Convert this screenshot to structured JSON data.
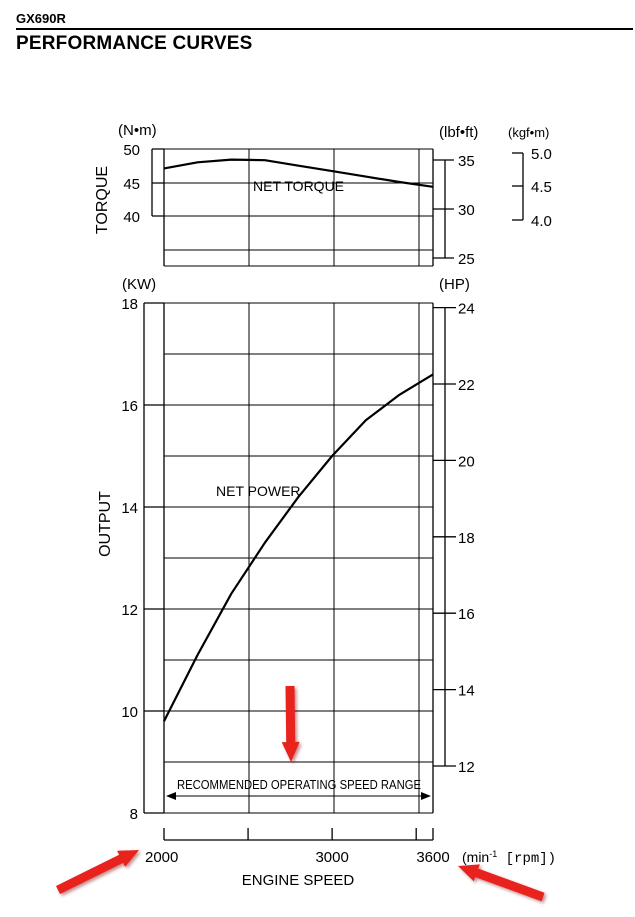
{
  "header": {
    "model": "GX690R",
    "title": "PERFORMANCE CURVES"
  },
  "chart_data": {
    "type": "line",
    "xlabel": "ENGINE SPEED",
    "x_unit": "(min",
    "x_unit_sup": "-1",
    "x_unit_rest": " [rpm])",
    "xlim": [
      2000,
      3600
    ],
    "x_ticks": [
      2000,
      3000,
      3600
    ],
    "x_minor": [
      2500,
      3500
    ],
    "torque_panel": {
      "ylabel": "TORQUE",
      "unit_left": "(N•m)",
      "unit_right": "(lbf•ft)",
      "unit_far": "(kgf•m)",
      "ticks_left": [
        "50",
        "45",
        "40"
      ],
      "ticks_right": [
        "35",
        "30",
        "25"
      ],
      "ticks_far": [
        "5.0",
        "4.5",
        "4.0"
      ],
      "series": [
        {
          "name": "NET TORQUE",
          "unit": "N•m",
          "x": [
            2000,
            2200,
            2400,
            2600,
            2800,
            3000,
            3200,
            3400,
            3600
          ],
          "y": [
            47.0,
            47.9,
            48.3,
            48.2,
            47.4,
            46.6,
            45.8,
            45.0,
            44.3
          ]
        }
      ]
    },
    "output_panel": {
      "ylabel": "OUTPUT",
      "unit_left": "(KW)",
      "unit_right": "(HP)",
      "ylim": [
        8,
        18
      ],
      "ticks_left": [
        "18",
        "16",
        "14",
        "12",
        "10",
        "8"
      ],
      "ticks_right": [
        "24",
        "22",
        "20",
        "18",
        "16",
        "14",
        "12"
      ],
      "series": [
        {
          "name": "NET POWER",
          "unit": "kW",
          "x": [
            2000,
            2200,
            2400,
            2600,
            2800,
            3000,
            3200,
            3400,
            3600
          ],
          "y": [
            9.8,
            11.1,
            12.3,
            13.3,
            14.2,
            15.0,
            15.7,
            16.2,
            16.6
          ]
        }
      ]
    },
    "annotation": "RECOMMENDED OPERATING SPEED RANGE",
    "accent_color": "#e8231f"
  }
}
